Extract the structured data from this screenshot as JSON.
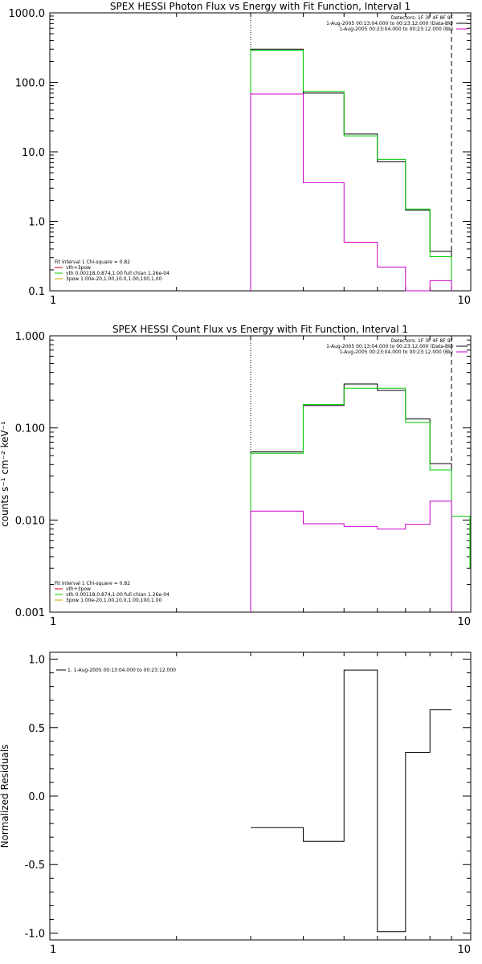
{
  "chart_data": [
    {
      "type": "line",
      "step": true,
      "title": "SPEX HESSI Photon Flux vs Energy with Fit Function, Interval 1",
      "xscale": "log",
      "yscale": "log",
      "xlim": [
        1,
        10
      ],
      "ylim": [
        0.1,
        1000
      ],
      "x_ticks": [
        "1",
        "10"
      ],
      "y_ticks": [
        "0.1",
        "1.0",
        "10.0",
        "100.0",
        "1000.0"
      ],
      "y_tick_values": [
        0.1,
        1,
        10,
        100,
        1000
      ],
      "bin_edges": [
        3,
        4,
        5,
        6,
        7,
        8,
        9
      ],
      "fit_range": [
        3,
        9
      ],
      "series": [
        {
          "name": "data",
          "color": "#000000",
          "values": [
            300,
            70,
            18,
            7.2,
            1.45,
            0.37
          ]
        },
        {
          "name": "vth+3pow",
          "color": "#00cc00",
          "values": [
            290,
            74,
            17,
            7.8,
            1.5,
            0.31
          ]
        },
        {
          "name": "background",
          "color": "#cc00cc",
          "values": [
            68,
            3.6,
            0.5,
            0.22,
            0.1,
            0.14
          ]
        }
      ],
      "legend_top": [
        "Detectors: 1F 3F 4F 8F 9F",
        "1-Aug-2005 00:13:04.000 to 00:23:12.000 (Data-Bk)",
        "1-Aug-2005 00:23:04.000 to 00:23:12.000 (Bk)"
      ],
      "legend_top_colors": [
        "none",
        "#000000",
        "#cc00cc"
      ],
      "legend_bottom": [
        "Fit Interval 1    Chi-square = 0.82",
        "vth+3pow",
        "vth 0.00118,0.874,1.00  full chian 1.26e-04",
        "3pow 1.00e-20,1.00,10.0,1.00,100,1.00"
      ],
      "legend_bottom_colors": [
        "none",
        "#cc0000",
        "#00cc00",
        "#ccaa00"
      ]
    },
    {
      "type": "line",
      "step": true,
      "title": "SPEX HESSI Count Flux vs Energy with Fit Function, Interval 1",
      "ylabel": "counts s⁻¹ cm⁻² keV⁻¹",
      "xscale": "log",
      "yscale": "log",
      "xlim": [
        1,
        10
      ],
      "ylim": [
        0.001,
        1
      ],
      "x_ticks": [
        "1",
        "10"
      ],
      "y_ticks": [
        "0.001",
        "0.010",
        "0.100",
        "1.000"
      ],
      "y_tick_values": [
        0.001,
        0.01,
        0.1,
        1
      ],
      "bin_edges": [
        3,
        4,
        5,
        6,
        7,
        8,
        9
      ],
      "fit_range": [
        3,
        9
      ],
      "series": [
        {
          "name": "data",
          "color": "#000000",
          "values": [
            0.055,
            0.175,
            0.3,
            0.255,
            0.125,
            0.041
          ]
        },
        {
          "name": "vth+3pow",
          "color": "#00cc00",
          "values": [
            0.053,
            0.18,
            0.27,
            0.27,
            0.115,
            0.035
          ]
        },
        {
          "name": "background",
          "color": "#cc00cc",
          "values": [
            0.0125,
            0.0091,
            0.0085,
            0.008,
            0.009,
            0.016
          ]
        }
      ],
      "extra_green": {
        "edges": [
          9,
          10
        ],
        "value": 0.011,
        "drop": 0.003
      },
      "legend_top": [
        "Detectors: 1F 3F 4F 8F 9F",
        "1-Aug-2005 00:13:04.000 to 00:23:12.000 (Data-Bk)",
        "1-Aug-2005 00:23:04.000 to 00:23:12.000 (Bk)"
      ],
      "legend_top_colors": [
        "none",
        "#000000",
        "#cc00cc"
      ],
      "legend_bottom": [
        "Fit Interval 1    Chi-square = 0.82",
        "vth+3pow",
        "vth 0.00118,0.874,1.00  full chian 1.26e-04",
        "3pow 1.00e-20,1.00,10.0,1.00,100,1.00"
      ],
      "legend_bottom_colors": [
        "none",
        "#cc0000",
        "#00cc00",
        "#ccaa00"
      ]
    },
    {
      "type": "line",
      "step": true,
      "title": "",
      "ylabel": "Normalized Residuals",
      "xscale": "log",
      "yscale": "linear",
      "xlim": [
        1,
        10
      ],
      "ylim": [
        -1.05,
        1.05
      ],
      "x_ticks": [
        "1",
        "10"
      ],
      "y_ticks": [
        "-1.0",
        "-0.5",
        "0.0",
        "0.5",
        "1.0"
      ],
      "y_tick_values": [
        -1,
        -0.5,
        0,
        0.5,
        1
      ],
      "bin_edges": [
        3,
        4,
        5,
        6,
        7,
        8,
        9
      ],
      "series": [
        {
          "name": "1. 1-Aug-2005 00:13:04.000 to 00:23:12.000",
          "color": "#000000",
          "values": [
            -0.23,
            -0.33,
            0.92,
            -0.99,
            0.32,
            0.63
          ]
        }
      ],
      "legend": [
        "1. 1-Aug-2005 00:13:04.000 to 00:23:12.000"
      ]
    }
  ]
}
